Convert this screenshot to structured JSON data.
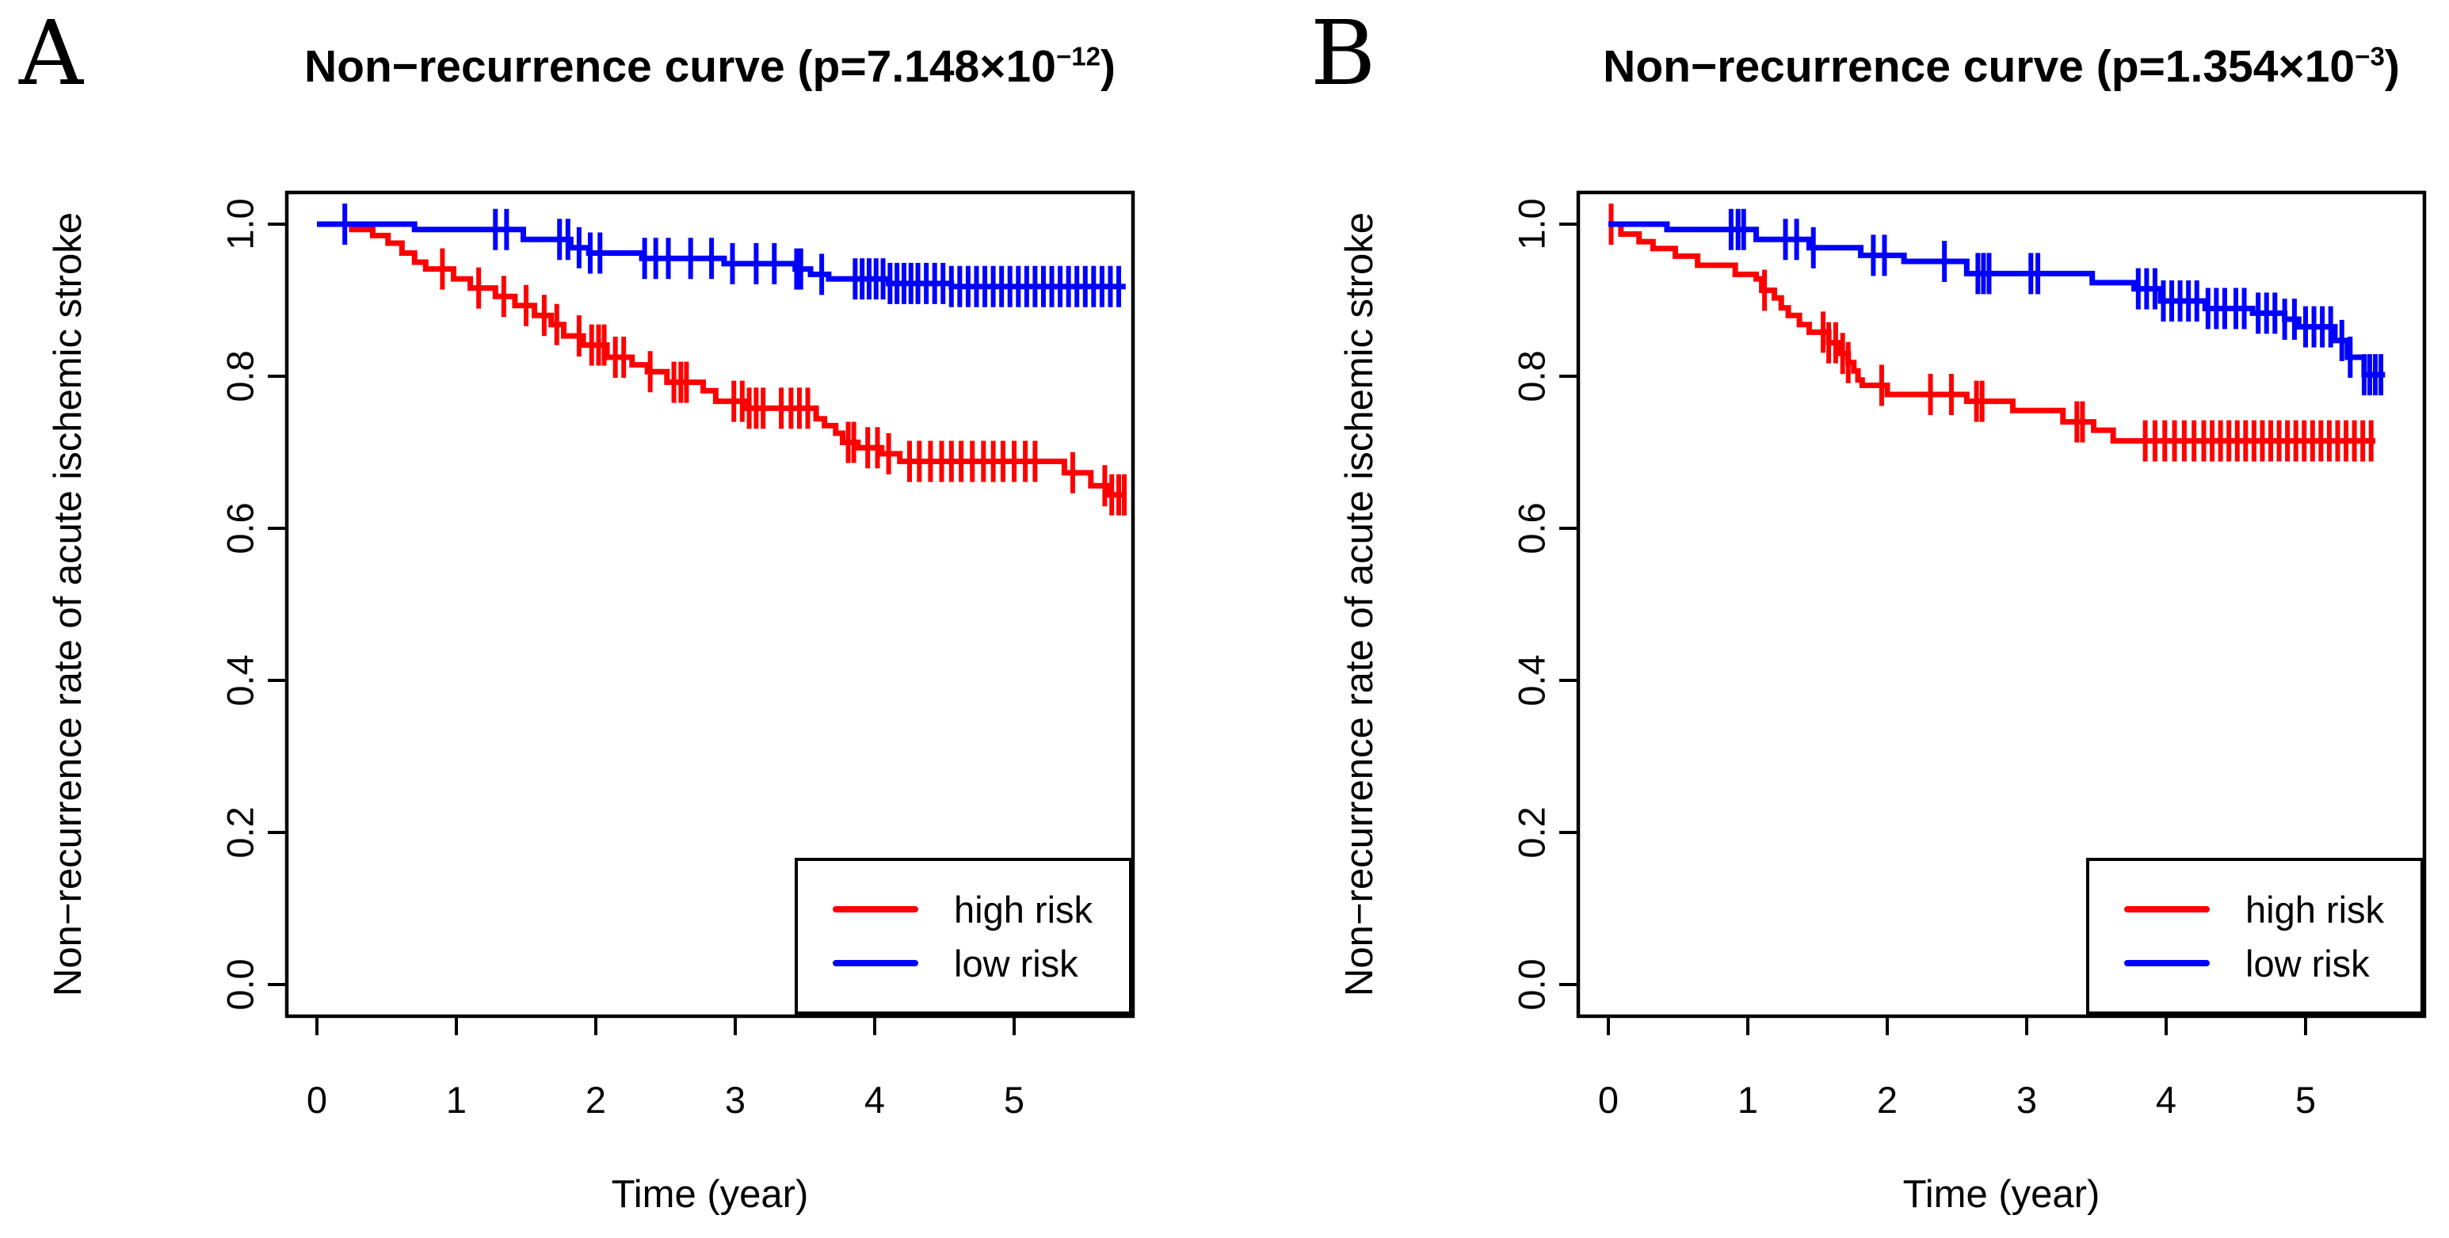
{
  "figure": {
    "background": "#ffffff",
    "axis_color": "#000000",
    "high_risk_color": "#ff0000",
    "low_risk_color": "#0000ff"
  },
  "chart_data": [
    {
      "type": "line",
      "subtype": "kaplan-meier-step-survival",
      "panel_label": "A",
      "title": {
        "prefix": "Non−recurrence curve (p=7.148×10",
        "exponent": "−12",
        "suffix": ")",
        "full": "Non−recurrence curve (p=7.148×10−12)"
      },
      "xlabel": "Time (year)",
      "ylabel": "Non−recurrence rate of acute ischemic stroke",
      "xlim": [
        -0.22,
        5.86
      ],
      "ylim": [
        -0.04,
        1.04
      ],
      "grid": false,
      "legend_position": "bottom-right",
      "x_ticks": {
        "values": [
          0,
          1,
          2,
          3,
          4,
          5
        ],
        "labels": [
          "0",
          "1",
          "2",
          "3",
          "4",
          "5"
        ]
      },
      "y_ticks": {
        "values": [
          0,
          0.2,
          0.4,
          0.6,
          0.8,
          1.0
        ],
        "labels": [
          "0.0",
          "0.2",
          "0.4",
          "0.6",
          "0.8",
          "1.0"
        ]
      },
      "legend": [
        {
          "label": "high risk",
          "color": "#ff0000"
        },
        {
          "label": "low risk",
          "color": "#0000ff"
        }
      ],
      "series": [
        {
          "name": "high risk",
          "color": "#ff0000",
          "end_time": 5.8,
          "steps": [
            [
              0,
              1.0
            ],
            [
              0.25,
              0.993
            ],
            [
              0.4,
              0.985
            ],
            [
              0.51,
              0.975
            ],
            [
              0.61,
              0.962
            ],
            [
              0.7,
              0.95
            ],
            [
              0.78,
              0.941
            ],
            [
              0.98,
              0.928
            ],
            [
              1.1,
              0.916
            ],
            [
              1.28,
              0.905
            ],
            [
              1.42,
              0.893
            ],
            [
              1.56,
              0.88
            ],
            [
              1.68,
              0.868
            ],
            [
              1.77,
              0.853
            ],
            [
              1.91,
              0.841
            ],
            [
              2.08,
              0.825
            ],
            [
              2.26,
              0.815
            ],
            [
              2.37,
              0.806
            ],
            [
              2.51,
              0.792
            ],
            [
              2.77,
              0.781
            ],
            [
              2.86,
              0.767
            ],
            [
              3.07,
              0.758
            ],
            [
              3.58,
              0.744
            ],
            [
              3.64,
              0.735
            ],
            [
              3.72,
              0.725
            ],
            [
              3.77,
              0.713
            ],
            [
              3.88,
              0.706
            ],
            [
              4.05,
              0.698
            ],
            [
              4.18,
              0.688
            ],
            [
              5.36,
              0.673
            ],
            [
              5.55,
              0.656
            ],
            [
              5.68,
              0.644
            ]
          ],
          "censor_times": [
            0.9,
            1.16,
            1.34,
            1.5,
            1.63,
            1.72,
            1.88,
            1.97,
            2.02,
            2.06,
            2.14,
            2.2,
            2.39,
            2.56,
            2.61,
            2.65,
            2.99,
            3.05,
            3.1,
            3.15,
            3.2,
            3.33,
            3.4,
            3.46,
            3.52,
            3.81,
            3.85,
            3.95,
            4.02,
            4.1,
            4.25,
            4.32,
            4.4,
            4.48,
            4.55,
            4.62,
            4.7,
            4.78,
            4.85,
            4.92,
            5.0,
            5.08,
            5.15,
            5.42,
            5.65,
            5.7,
            5.75,
            5.79
          ]
        },
        {
          "name": "low risk",
          "color": "#0000ff",
          "end_time": 5.8,
          "steps": [
            [
              0,
              1.0
            ],
            [
              0.7,
              0.993
            ],
            [
              1.48,
              0.98
            ],
            [
              1.82,
              0.969
            ],
            [
              1.95,
              0.962
            ],
            [
              2.33,
              0.955
            ],
            [
              2.92,
              0.948
            ],
            [
              3.43,
              0.941
            ],
            [
              3.54,
              0.934
            ],
            [
              3.67,
              0.928
            ],
            [
              4.1,
              0.922
            ],
            [
              4.55,
              0.918
            ]
          ],
          "censor_times": [
            0.2,
            1.28,
            1.36,
            1.74,
            1.8,
            1.88,
            1.96,
            2.03,
            2.35,
            2.43,
            2.52,
            2.68,
            2.83,
            2.98,
            3.15,
            3.28,
            3.44,
            3.47,
            3.62,
            3.86,
            3.91,
            3.96,
            4.01,
            4.06,
            4.11,
            4.16,
            4.21,
            4.26,
            4.31,
            4.37,
            4.43,
            4.49,
            4.55,
            4.61,
            4.67,
            4.73,
            4.79,
            4.85,
            4.91,
            4.97,
            5.03,
            5.09,
            5.15,
            5.21,
            5.27,
            5.33,
            5.39,
            5.45,
            5.51,
            5.57,
            5.63,
            5.69,
            5.75
          ]
        }
      ]
    },
    {
      "type": "line",
      "subtype": "kaplan-meier-step-survival",
      "panel_label": "B",
      "title": {
        "prefix": "Non−recurrence curve (p=1.354×10",
        "exponent": "−3",
        "suffix": ")",
        "full": "Non−recurrence curve (p=1.354×10−3)"
      },
      "xlabel": "Time (year)",
      "ylabel": "Non−recurrence rate of acute ischemic stroke",
      "xlim": [
        -0.22,
        5.86
      ],
      "ylim": [
        -0.04,
        1.04
      ],
      "grid": false,
      "legend_position": "bottom-right",
      "x_ticks": {
        "values": [
          0,
          1,
          2,
          3,
          4,
          5
        ],
        "labels": [
          "0",
          "1",
          "2",
          "3",
          "4",
          "5"
        ]
      },
      "y_ticks": {
        "values": [
          0,
          0.2,
          0.4,
          0.6,
          0.8,
          1.0
        ],
        "labels": [
          "0.0",
          "0.2",
          "0.4",
          "0.6",
          "0.8",
          "1.0"
        ]
      },
      "legend": [
        {
          "label": "high risk",
          "color": "#ff0000"
        },
        {
          "label": "low risk",
          "color": "#0000ff"
        }
      ],
      "series": [
        {
          "name": "high risk",
          "color": "#ff0000",
          "end_time": 5.5,
          "steps": [
            [
              0,
              1.0
            ],
            [
              0.09,
              0.987
            ],
            [
              0.22,
              0.977
            ],
            [
              0.32,
              0.968
            ],
            [
              0.48,
              0.958
            ],
            [
              0.64,
              0.946
            ],
            [
              0.91,
              0.934
            ],
            [
              1.06,
              0.928
            ],
            [
              1.1,
              0.913
            ],
            [
              1.19,
              0.903
            ],
            [
              1.24,
              0.89
            ],
            [
              1.29,
              0.88
            ],
            [
              1.37,
              0.868
            ],
            [
              1.44,
              0.858
            ],
            [
              1.58,
              0.844
            ],
            [
              1.66,
              0.83
            ],
            [
              1.72,
              0.818
            ],
            [
              1.76,
              0.807
            ],
            [
              1.79,
              0.795
            ],
            [
              1.82,
              0.788
            ],
            [
              2.0,
              0.776
            ],
            [
              2.57,
              0.767
            ],
            [
              2.9,
              0.755
            ],
            [
              3.26,
              0.74
            ],
            [
              3.48,
              0.729
            ],
            [
              3.62,
              0.715
            ]
          ],
          "censor_times": [
            0.02,
            1.12,
            1.54,
            1.58,
            1.63,
            1.68,
            1.72,
            1.96,
            2.31,
            2.46,
            2.64,
            2.68,
            3.36,
            3.4,
            3.85,
            3.92,
            3.99,
            4.06,
            4.13,
            4.2,
            4.27,
            4.33,
            4.39,
            4.45,
            4.51,
            4.57,
            4.63,
            4.69,
            4.75,
            4.81,
            4.87,
            4.93,
            4.99,
            5.05,
            5.11,
            5.17,
            5.23,
            5.29,
            5.35,
            5.41,
            5.47
          ]
        },
        {
          "name": "low risk",
          "color": "#0000ff",
          "end_time": 5.57,
          "steps": [
            [
              0,
              1.0
            ],
            [
              0.42,
              0.993
            ],
            [
              1.06,
              0.98
            ],
            [
              1.44,
              0.969
            ],
            [
              1.81,
              0.959
            ],
            [
              2.12,
              0.951
            ],
            [
              2.57,
              0.935
            ],
            [
              3.47,
              0.923
            ],
            [
              3.77,
              0.915
            ],
            [
              3.96,
              0.899
            ],
            [
              4.28,
              0.889
            ],
            [
              4.62,
              0.883
            ],
            [
              4.85,
              0.875
            ],
            [
              4.95,
              0.865
            ],
            [
              5.21,
              0.847
            ],
            [
              5.3,
              0.825
            ],
            [
              5.42,
              0.802
            ]
          ],
          "censor_times": [
            0.88,
            0.93,
            0.97,
            1.27,
            1.35,
            1.47,
            1.9,
            1.98,
            2.41,
            2.65,
            2.69,
            2.73,
            3.03,
            3.08,
            3.8,
            3.86,
            3.92,
            3.98,
            4.04,
            4.1,
            4.16,
            4.22,
            4.3,
            4.36,
            4.42,
            4.5,
            4.56,
            4.66,
            4.72,
            4.78,
            4.85,
            4.92,
            5.0,
            5.06,
            5.12,
            5.18,
            5.26,
            5.32,
            5.42,
            5.46,
            5.5,
            5.54
          ]
        }
      ]
    }
  ]
}
